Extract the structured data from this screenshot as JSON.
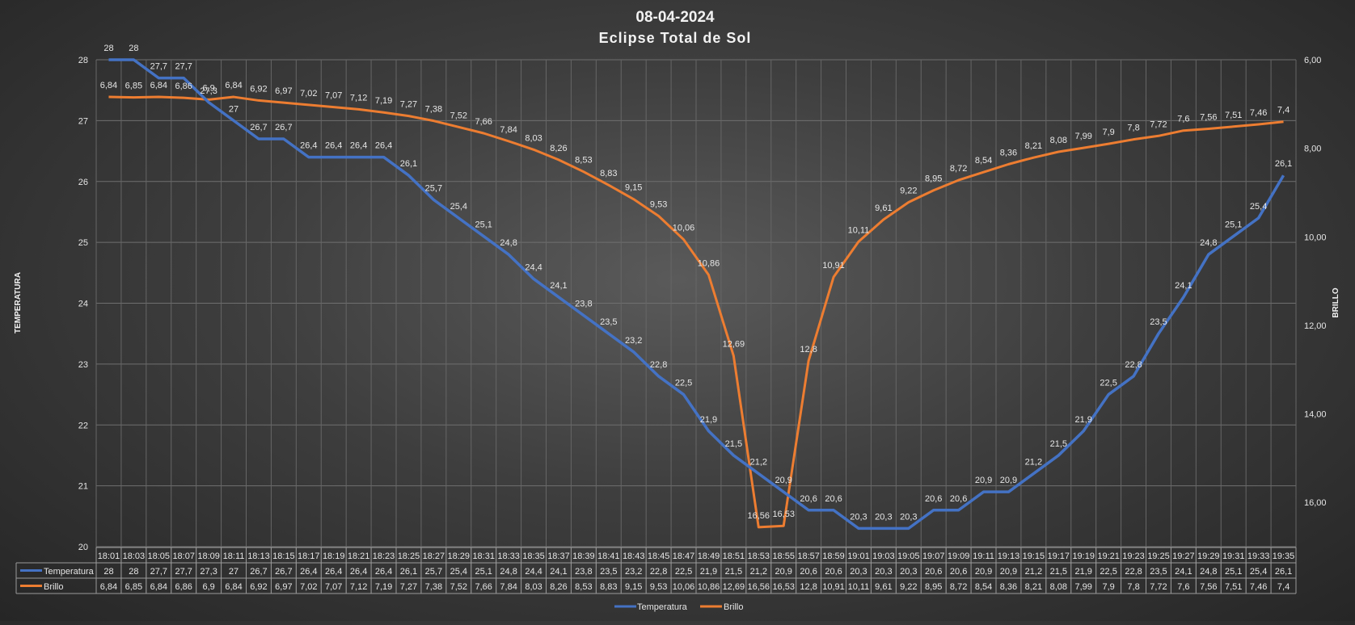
{
  "chart_data": {
    "type": "line",
    "title": "08-04-2024",
    "subtitle": "Eclipse Total de Sol",
    "ylabel": "TEMPERATURA",
    "y2label": "BRILLO",
    "ylim": [
      20,
      28
    ],
    "y_ticks": [
      "20",
      "21",
      "22",
      "23",
      "24",
      "25",
      "26",
      "27",
      "28"
    ],
    "y2lim": [
      6,
      17
    ],
    "y2_inverted": true,
    "y2_ticks": [
      "6,00",
      "8,00",
      "10,00",
      "12,00",
      "14,00",
      "16,00"
    ],
    "grid": true,
    "legend_position": "bottom",
    "categories": [
      "18:01",
      "18:03",
      "18:05",
      "18:07",
      "18:09",
      "18:11",
      "18:13",
      "18:15",
      "18:17",
      "18:19",
      "18:21",
      "18:23",
      "18:25",
      "18:27",
      "18:29",
      "18:31",
      "18:33",
      "18:35",
      "18:37",
      "18:39",
      "18:41",
      "18:43",
      "18:45",
      "18:47",
      "18:49",
      "18:51",
      "18:53",
      "18:55",
      "18:57",
      "18:59",
      "19:01",
      "19:03",
      "19:05",
      "19:07",
      "19:09",
      "19:11",
      "19:13",
      "19:15",
      "19:17",
      "19:19",
      "19:21",
      "19:23",
      "19:25",
      "19:27",
      "19:29",
      "19:31",
      "19:33",
      "19:35"
    ],
    "series": [
      {
        "name": "Temperatura",
        "color": "#4472c4",
        "axis": "left",
        "values": [
          28,
          28,
          27.7,
          27.7,
          27.3,
          27,
          26.7,
          26.7,
          26.4,
          26.4,
          26.4,
          26.4,
          26.1,
          25.7,
          25.4,
          25.1,
          24.8,
          24.4,
          24.1,
          23.8,
          23.5,
          23.2,
          22.8,
          22.5,
          21.9,
          21.5,
          21.2,
          20.9,
          20.6,
          20.6,
          20.3,
          20.3,
          20.3,
          20.6,
          20.6,
          20.9,
          20.9,
          21.2,
          21.5,
          21.9,
          22.5,
          22.8,
          23.5,
          24.1,
          24.8,
          25.1,
          25.4,
          26.1
        ],
        "labels": [
          "28",
          "28",
          "27,7",
          "27,7",
          "27,3",
          "27",
          "26,7",
          "26,7",
          "26,4",
          "26,4",
          "26,4",
          "26,4",
          "26,1",
          "25,7",
          "25,4",
          "25,1",
          "24,8",
          "24,4",
          "24,1",
          "23,8",
          "23,5",
          "23,2",
          "22,8",
          "22,5",
          "21,9",
          "21,5",
          "21,2",
          "20,9",
          "20,6",
          "20,6",
          "20,3",
          "20,3",
          "20,3",
          "20,6",
          "20,6",
          "20,9",
          "20,9",
          "21,2",
          "21,5",
          "21,9",
          "22,5",
          "22,8",
          "23,5",
          "24,1",
          "24,8",
          "25,1",
          "25,4",
          "26,1"
        ]
      },
      {
        "name": "Brillo",
        "color": "#ed7d31",
        "axis": "right",
        "values": [
          6.84,
          6.85,
          6.84,
          6.86,
          6.9,
          6.84,
          6.92,
          6.97,
          7.02,
          7.07,
          7.12,
          7.19,
          7.27,
          7.38,
          7.52,
          7.66,
          7.84,
          8.03,
          8.26,
          8.53,
          8.83,
          9.15,
          9.53,
          10.06,
          10.86,
          12.69,
          16.56,
          16.53,
          12.8,
          10.91,
          10.11,
          9.61,
          9.22,
          8.95,
          8.72,
          8.54,
          8.36,
          8.21,
          8.08,
          7.99,
          7.9,
          7.8,
          7.72,
          7.6,
          7.56,
          7.51,
          7.46,
          7.4
        ],
        "labels": [
          "6,84",
          "6,85",
          "6,84",
          "6,86",
          "6,9",
          "6,84",
          "6,92",
          "6,97",
          "7,02",
          "7,07",
          "7,12",
          "7,19",
          "7,27",
          "7,38",
          "7,52",
          "7,66",
          "7,84",
          "8,03",
          "8,26",
          "8,53",
          "8,83",
          "9,15",
          "9,53",
          "10,06",
          "10,86",
          "12,69",
          "16,56",
          "16,53",
          "12,8",
          "10,91",
          "10,11",
          "9,61",
          "9,22",
          "8,95",
          "8,72",
          "8,54",
          "8,36",
          "8,21",
          "8,08",
          "7,99",
          "7,9",
          "7,8",
          "7,72",
          "7,6",
          "7,56",
          "7,51",
          "7,46",
          "7,4"
        ]
      }
    ]
  }
}
